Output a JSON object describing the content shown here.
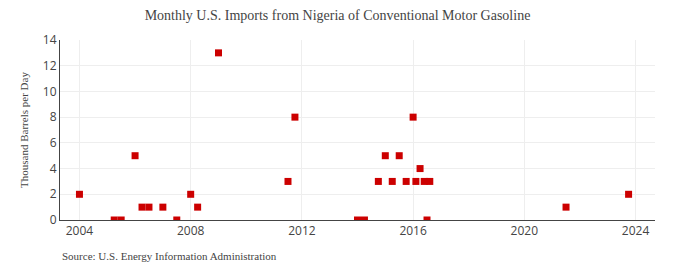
{
  "chart_data": {
    "type": "scatter",
    "title": "Monthly U.S. Imports from Nigeria of Conventional Motor Gasoline",
    "ylabel": "Thousand Barrels per Day",
    "annotations": [
      "Source: U.S. Energy Information Administration"
    ],
    "color": "#cc0000",
    "marker": "square",
    "grid": true,
    "xlim": [
      2003.3,
      2024.7
    ],
    "xticks": [
      2004,
      2008,
      2012,
      2016,
      2020,
      2024
    ],
    "ylim": [
      0,
      14
    ],
    "yticks": [
      0,
      2,
      4,
      6,
      8,
      10,
      12,
      14
    ],
    "x": [
      2004.0,
      2005.25,
      2005.5,
      2006.0,
      2006.25,
      2006.5,
      2007.0,
      2007.5,
      2008.0,
      2008.25,
      2009.0,
      2011.5,
      2011.75,
      2014.0,
      2014.25,
      2014.75,
      2015.0,
      2015.25,
      2015.5,
      2015.75,
      2016.0,
      2016.1,
      2016.25,
      2016.4,
      2016.5,
      2016.6,
      2021.5,
      2023.75
    ],
    "values": [
      2,
      0,
      0,
      5,
      1,
      1,
      1,
      0,
      2,
      1,
      13,
      3,
      8,
      0,
      0,
      3,
      5,
      3,
      5,
      3,
      8,
      3,
      4,
      3,
      0,
      3,
      1,
      2
    ]
  }
}
